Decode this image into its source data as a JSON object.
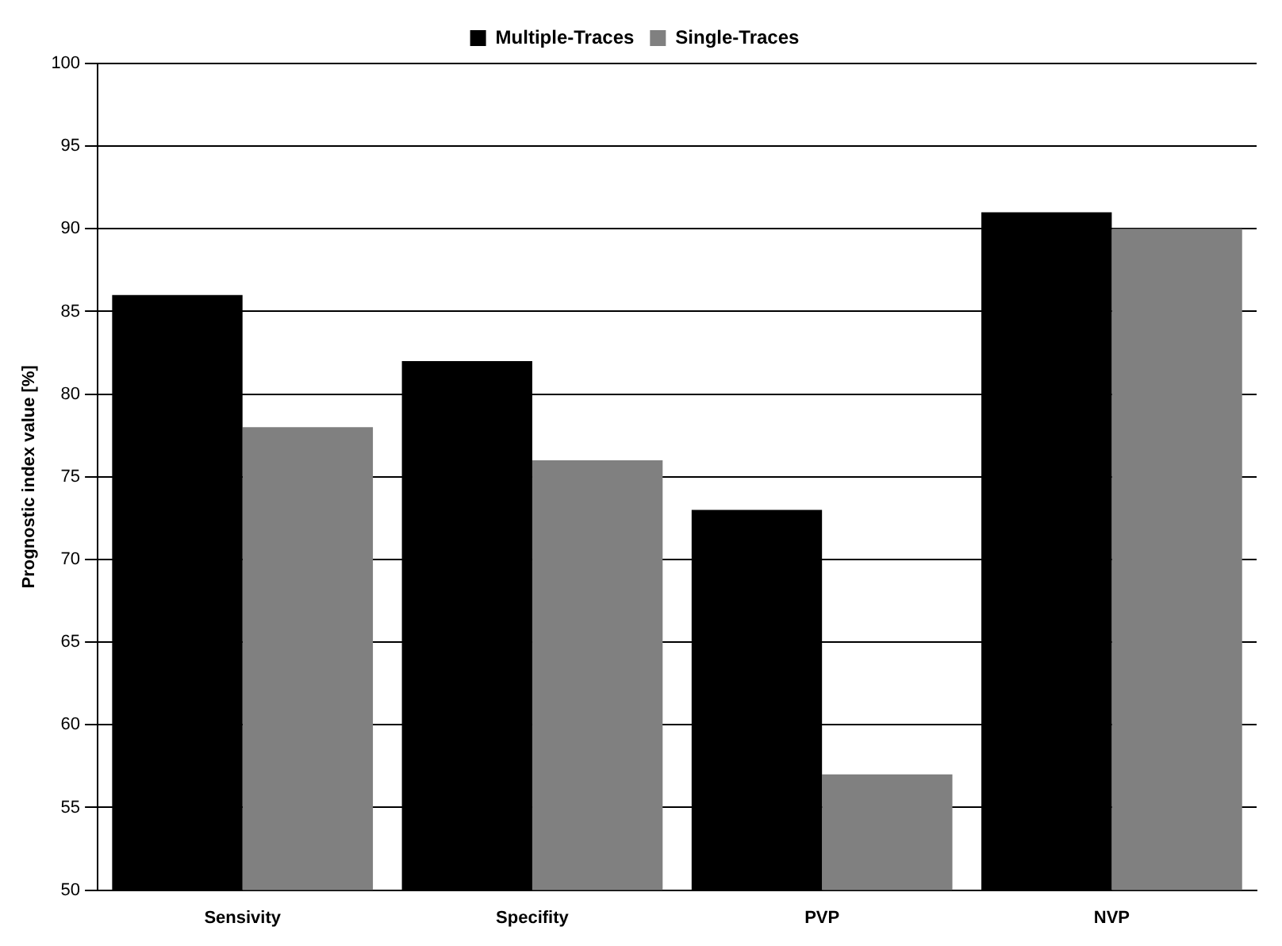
{
  "chart_data": {
    "type": "bar",
    "ylabel": "Prognostic index value [%]",
    "categories": [
      "Sensivity",
      "Specifity",
      "PVP",
      "NVP"
    ],
    "series": [
      {
        "name": "Multiple-Traces",
        "color": "#000000",
        "values": [
          86,
          82,
          73,
          91
        ]
      },
      {
        "name": "Single-Traces",
        "color": "#808080",
        "values": [
          78,
          76,
          57,
          90
        ]
      }
    ],
    "ylim": [
      50,
      100
    ],
    "yticks": [
      50,
      55,
      60,
      65,
      70,
      75,
      80,
      85,
      90,
      95,
      100
    ],
    "grid": "y",
    "legend": "top"
  }
}
